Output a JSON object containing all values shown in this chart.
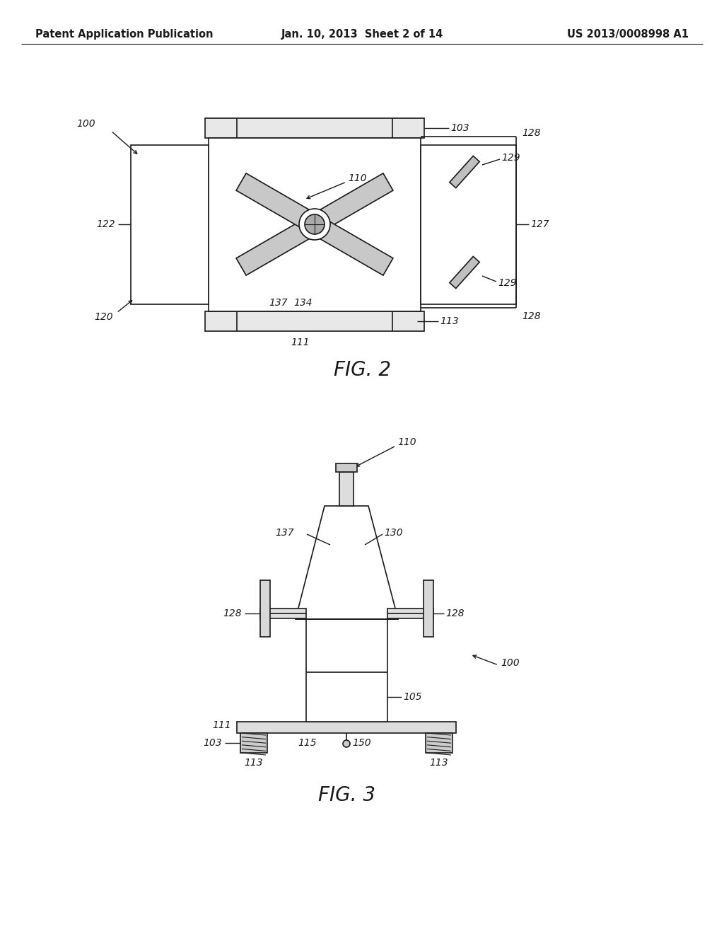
{
  "bg_color": "#ffffff",
  "line_color": "#1a1a1a",
  "fig_width": 10.24,
  "fig_height": 13.2,
  "header": {
    "left": "Patent Application Publication",
    "center": "Jan. 10, 2013  Sheet 2 of 14",
    "right": "US 2013/0008998 A1",
    "fontsize": 10.5
  },
  "fig2_caption": "FIG. 2",
  "fig3_caption": "FIG. 3",
  "caption_fontsize": 20
}
